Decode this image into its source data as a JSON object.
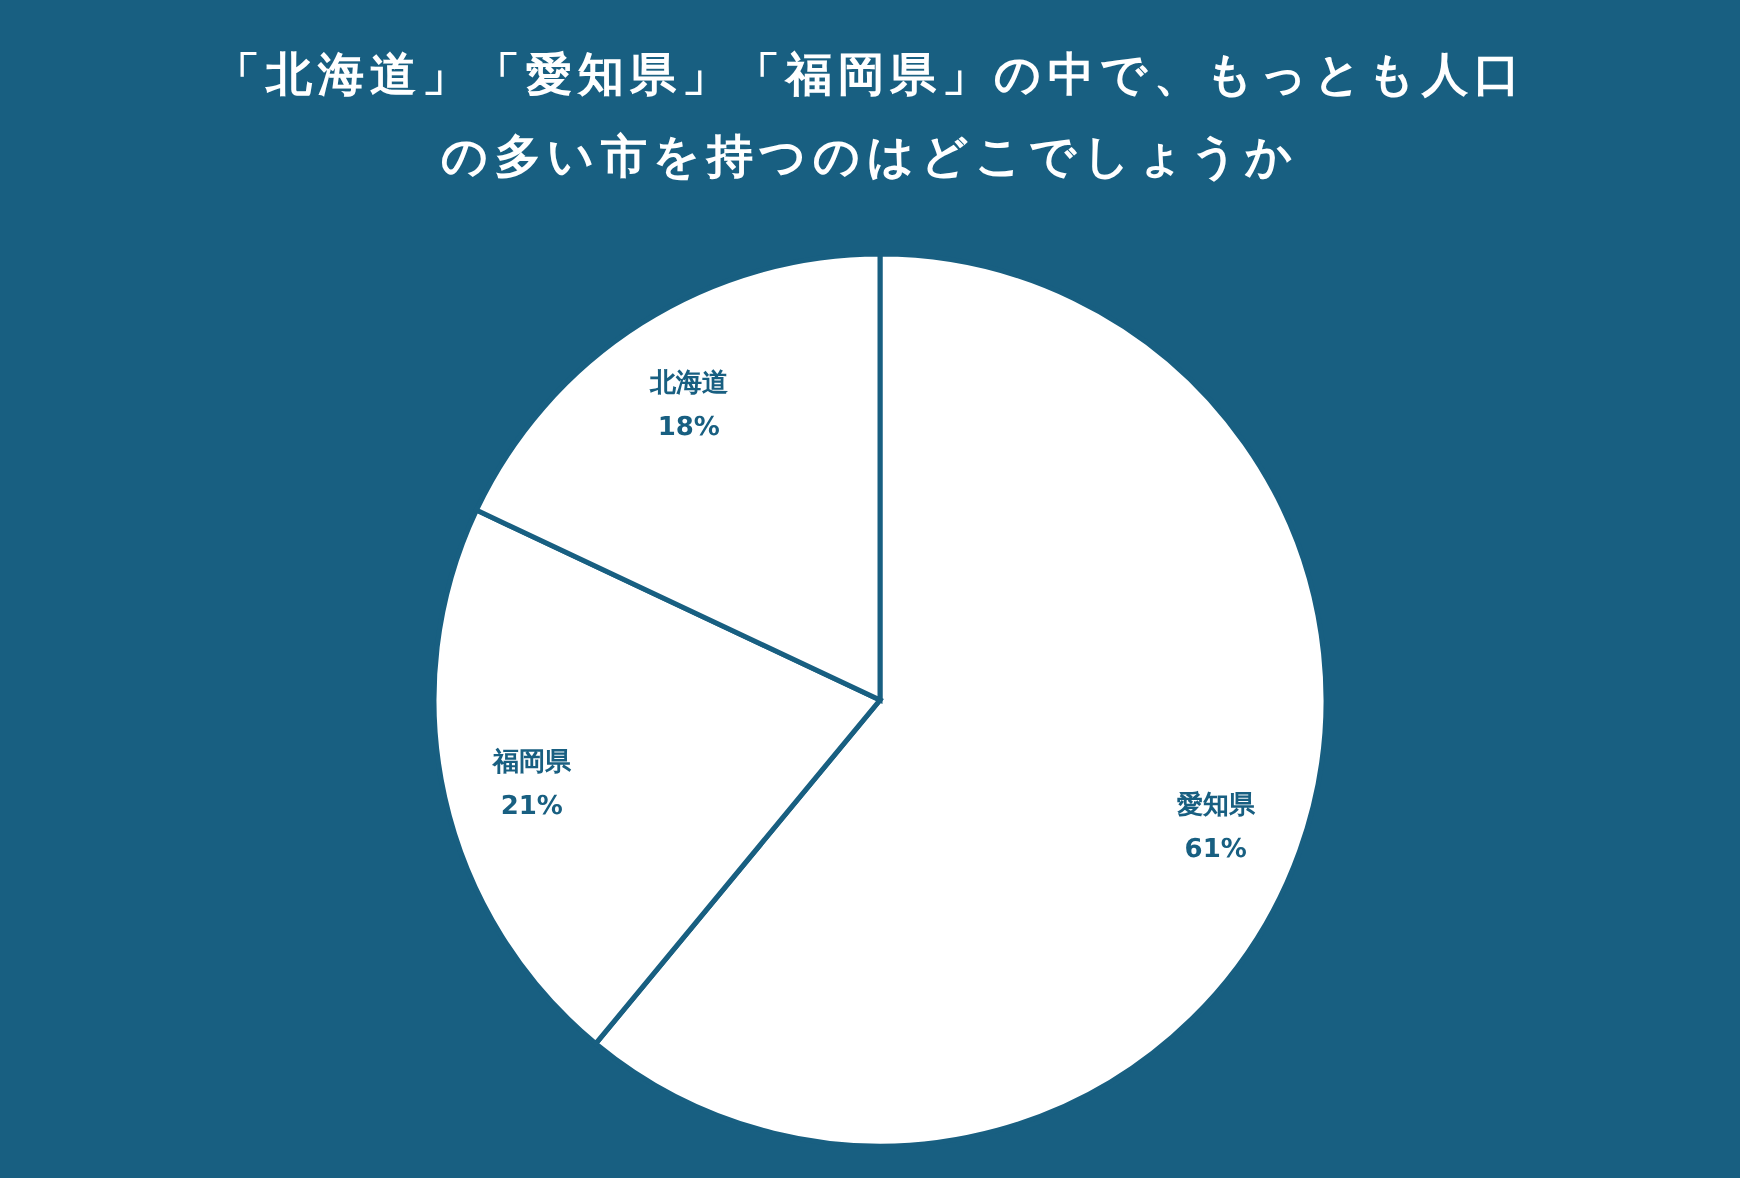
{
  "chart_data": {
    "type": "pie",
    "title": "「北海道」「愛知県」「福岡県」の中で、もっとも人口の多い市を持つのはどこでしょうか",
    "categories": [
      "愛知県",
      "福岡県",
      "北海道"
    ],
    "values": [
      61,
      21,
      18
    ],
    "colors": [
      "#ffffff",
      "#ffffff",
      "#ffffff"
    ],
    "value_labels": [
      "61%",
      "21%",
      "18%"
    ],
    "legend": false
  }
}
